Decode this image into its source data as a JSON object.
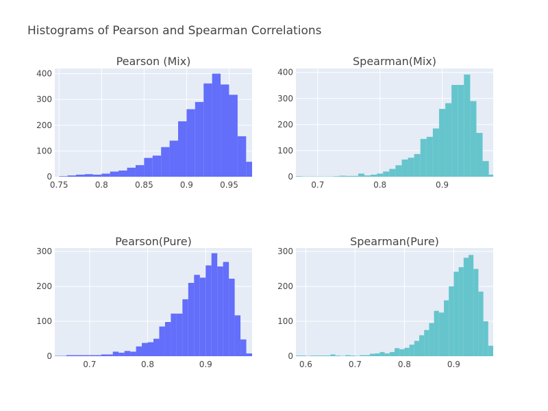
{
  "title": "Histograms of Pearson and Spearman Correlations",
  "colors": {
    "pearson": "#636efa",
    "spearman": "#66c5cc",
    "plot_bg": "#e5ecf6"
  },
  "chart_data": [
    {
      "type": "bar",
      "title": "Pearson (Mix)",
      "color": "#636efa",
      "bin_start": 0.75,
      "bin_width": 0.01,
      "values": [
        2,
        5,
        8,
        10,
        8,
        12,
        20,
        24,
        35,
        45,
        73,
        82,
        115,
        140,
        215,
        262,
        290,
        362,
        400,
        358,
        318,
        157,
        58,
        3
      ],
      "xlim": [
        0.745,
        0.977
      ],
      "ylim": [
        0,
        420
      ],
      "xticks": [
        0.75,
        0.8,
        0.85,
        0.9,
        0.95
      ],
      "xtick_labels": [
        "0.75",
        "0.8",
        "0.85",
        "0.9",
        "0.95"
      ],
      "yticks": [
        0,
        100,
        200,
        300,
        400
      ],
      "ytick_labels": [
        "0",
        "100",
        "200",
        "300",
        "400"
      ]
    },
    {
      "type": "bar",
      "title": "Spearman(Mix)",
      "color": "#66c5cc",
      "bin_start": 0.665,
      "bin_width": 0.01,
      "values": [
        2,
        1,
        1,
        1,
        1,
        1,
        2,
        4,
        3,
        3,
        12,
        5,
        8,
        12,
        20,
        30,
        44,
        66,
        73,
        87,
        145,
        153,
        185,
        260,
        282,
        352,
        352,
        392,
        290,
        168,
        60,
        8
      ],
      "xlim": [
        0.665,
        0.982
      ],
      "ylim": [
        0,
        415
      ],
      "xticks": [
        0.7,
        0.8,
        0.9
      ],
      "xtick_labels": [
        "0.7",
        "0.8",
        "0.9"
      ],
      "yticks": [
        0,
        100,
        200,
        300,
        400
      ],
      "ytick_labels": [
        "0",
        "100",
        "200",
        "300",
        "400"
      ]
    },
    {
      "type": "bar",
      "title": "Pearson(Pure)",
      "color": "#636efa",
      "bin_start": 0.64,
      "bin_width": 0.01,
      "values": [
        1,
        1,
        3,
        3,
        3,
        3,
        3,
        3,
        5,
        5,
        13,
        10,
        15,
        13,
        28,
        38,
        40,
        50,
        85,
        98,
        122,
        122,
        163,
        210,
        233,
        225,
        260,
        295,
        257,
        270,
        222,
        117,
        48,
        8
      ],
      "xlim": [
        0.64,
        0.98
      ],
      "ylim": [
        0,
        310
      ],
      "xticks": [
        0.7,
        0.8,
        0.9
      ],
      "xtick_labels": [
        "0.7",
        "0.8",
        "0.9"
      ],
      "yticks": [
        0,
        100,
        200,
        300
      ],
      "ytick_labels": [
        "0",
        "100",
        "200",
        "300"
      ]
    },
    {
      "type": "bar",
      "title": "Spearman(Pure)",
      "color": "#66c5cc",
      "bin_start": 0.58,
      "bin_width": 0.01,
      "values": [
        2,
        2,
        1,
        2,
        2,
        2,
        2,
        5,
        2,
        1,
        3,
        2,
        1,
        3,
        3,
        7,
        8,
        12,
        8,
        12,
        23,
        20,
        24,
        33,
        44,
        60,
        75,
        95,
        130,
        125,
        160,
        200,
        242,
        255,
        282,
        290,
        250,
        185,
        100,
        30,
        6
      ],
      "xlim": [
        0.58,
        0.98
      ],
      "ylim": [
        0,
        310
      ],
      "xticks": [
        0.6,
        0.7,
        0.8,
        0.9
      ],
      "xtick_labels": [
        "0.6",
        "0.7",
        "0.8",
        "0.9"
      ],
      "yticks": [
        0,
        100,
        200,
        300
      ],
      "ytick_labels": [
        "0",
        "100",
        "200",
        "300"
      ]
    }
  ]
}
